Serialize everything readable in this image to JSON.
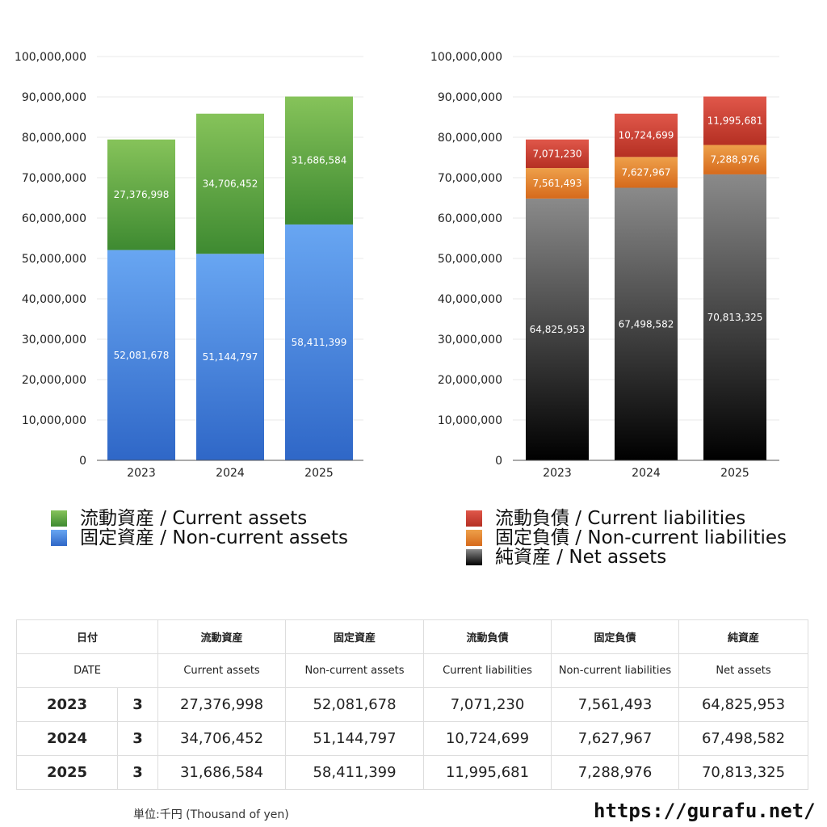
{
  "chart_data": [
    {
      "type": "bar",
      "stacked": true,
      "categories": [
        "2023",
        "2024",
        "2025"
      ],
      "series": [
        {
          "name": "固定資産 / Non-current assets",
          "values": [
            52081678,
            51144797,
            58411399
          ]
        },
        {
          "name": "流動資産 / Current assets",
          "values": [
            27376998,
            34706452,
            31686584
          ]
        }
      ],
      "value_labels": [
        [
          "52,081,678",
          "51,144,797",
          "58,411,399"
        ],
        [
          "27,376,998",
          "34,706,452",
          "31,686,584"
        ]
      ],
      "colors": [
        [
          "#2f67c7",
          "#68a6f2"
        ],
        [
          "#3e8a31",
          "#86c35a"
        ]
      ],
      "ylim": [
        0,
        100000000
      ],
      "yticks": [
        "0",
        "10,000,000",
        "20,000,000",
        "30,000,000",
        "40,000,000",
        "50,000,000",
        "60,000,000",
        "70,000,000",
        "80,000,000",
        "90,000,000",
        "100,000,000"
      ],
      "grid": true,
      "legend_position": "bottom",
      "title": "",
      "xlabel": "",
      "ylabel": ""
    },
    {
      "type": "bar",
      "stacked": true,
      "categories": [
        "2023",
        "2024",
        "2025"
      ],
      "series": [
        {
          "name": "純資産 / Net assets",
          "values": [
            64825953,
            67498582,
            70813325
          ]
        },
        {
          "name": "固定負債 / Non-current liabilities",
          "values": [
            7561493,
            7627967,
            7288976
          ]
        },
        {
          "name": "流動負債 / Current liabilities",
          "values": [
            7071230,
            10724699,
            11995681
          ]
        }
      ],
      "value_labels": [
        [
          "64,825,953",
          "67,498,582",
          "70,813,325"
        ],
        [
          "7,561,493",
          "7,627,967",
          "7,288,976"
        ],
        [
          "7,071,230",
          "10,724,699",
          "11,995,681"
        ]
      ],
      "colors": [
        [
          "#000000",
          "#8a8a8a"
        ],
        [
          "#d66a1c",
          "#eea04a"
        ],
        [
          "#b53023",
          "#e0574a"
        ]
      ],
      "ylim": [
        0,
        100000000
      ],
      "yticks": [
        "0",
        "10,000,000",
        "20,000,000",
        "30,000,000",
        "40,000,000",
        "50,000,000",
        "60,000,000",
        "70,000,000",
        "80,000,000",
        "90,000,000",
        "100,000,000"
      ],
      "grid": true,
      "legend_position": "bottom",
      "title": "",
      "xlabel": "",
      "ylabel": ""
    }
  ],
  "legend_left": [
    {
      "label": "流動資産 / Current assets",
      "color": "#4ea040"
    },
    {
      "label": "固定資産 / Non-current assets",
      "color": "#4d8fe6"
    }
  ],
  "legend_right": [
    {
      "label": "流動負債 / Current liabilities",
      "color": "#d2473a"
    },
    {
      "label": "固定負債 / Non-current liabilities",
      "color": "#e5893a"
    },
    {
      "label": "純資産 / Net assets",
      "color": "#333333"
    }
  ],
  "table": {
    "header_ja": {
      "date": "日付",
      "current_assets": "流動資産",
      "noncurrent_assets": "固定資産",
      "current_liabilities": "流動負債",
      "noncurrent_liabilities": "固定負債",
      "net_assets": "純資産"
    },
    "header_en": {
      "date": "DATE",
      "current_assets": "Current assets",
      "noncurrent_assets": "Non-current assets",
      "current_liabilities": "Current liabilities",
      "noncurrent_liabilities": "Non-current liabilities",
      "net_assets": "Net assets"
    },
    "rows": [
      {
        "year": "2023",
        "month": "3",
        "ca": "27,376,998",
        "nca": "52,081,678",
        "cl": "7,071,230",
        "ncl": "7,561,493",
        "na": "64,825,953"
      },
      {
        "year": "2024",
        "month": "3",
        "ca": "34,706,452",
        "nca": "51,144,797",
        "cl": "10,724,699",
        "ncl": "7,627,967",
        "na": "67,498,582"
      },
      {
        "year": "2025",
        "month": "3",
        "ca": "31,686,584",
        "nca": "58,411,399",
        "cl": "11,995,681",
        "ncl": "7,288,976",
        "na": "70,813,325"
      }
    ]
  },
  "footer": {
    "unit": "単位:千円 (Thousand of yen)",
    "url": "https://gurafu.net/"
  }
}
